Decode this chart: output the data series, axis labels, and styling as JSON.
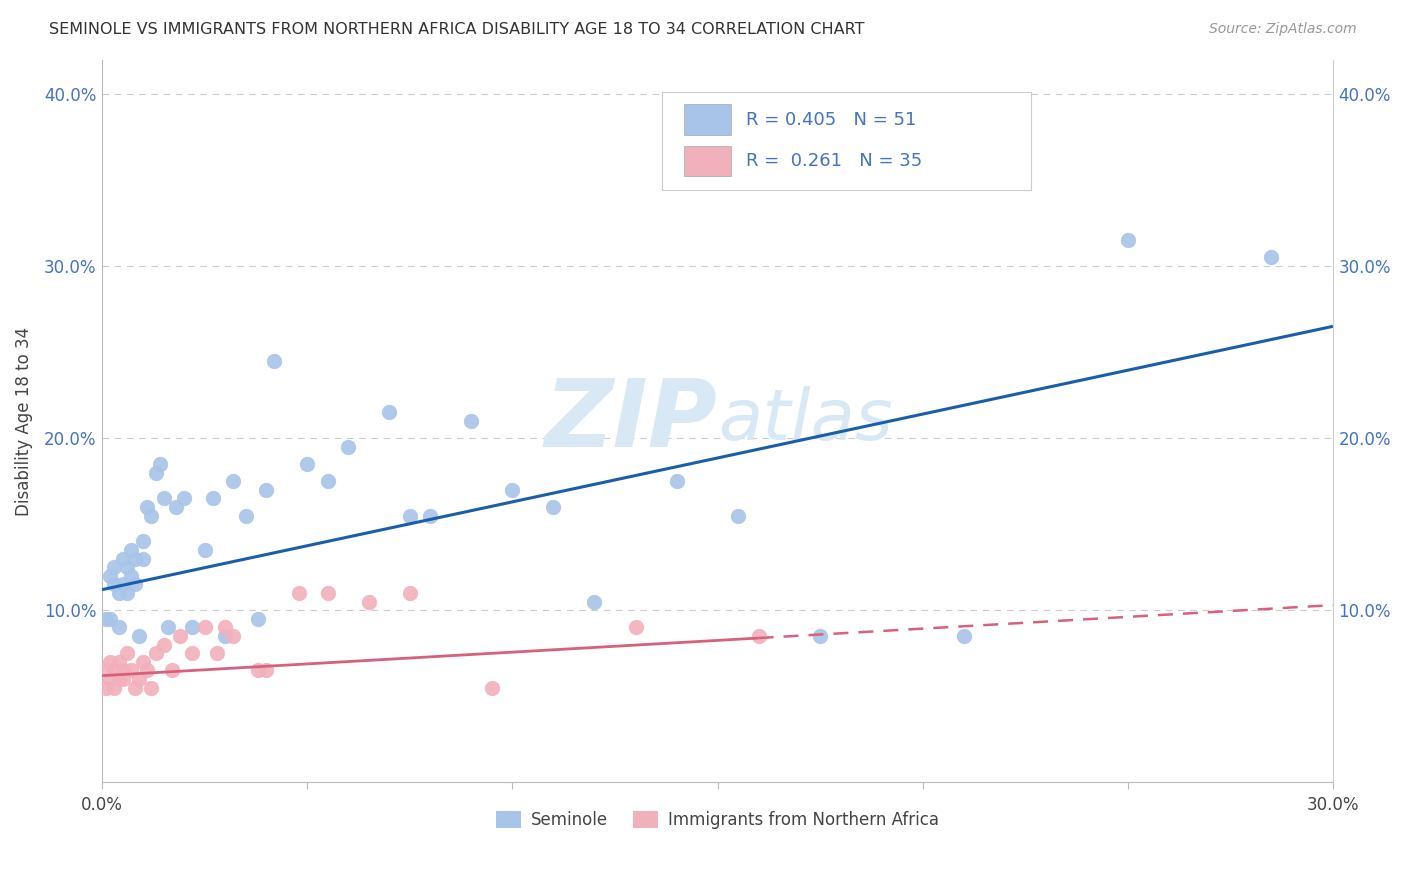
{
  "title": "SEMINOLE VS IMMIGRANTS FROM NORTHERN AFRICA DISABILITY AGE 18 TO 34 CORRELATION CHART",
  "source": "Source: ZipAtlas.com",
  "ylabel": "Disability Age 18 to 34",
  "xlim": [
    0.0,
    0.3
  ],
  "ylim": [
    0.0,
    0.42
  ],
  "x_ticks": [
    0.0,
    0.05,
    0.1,
    0.15,
    0.2,
    0.25,
    0.3
  ],
  "x_tick_labels": [
    "0.0%",
    "",
    "",
    "",
    "",
    "",
    "30.0%"
  ],
  "y_ticks": [
    0.0,
    0.1,
    0.2,
    0.3,
    0.4
  ],
  "y_tick_labels": [
    "",
    "10.0%",
    "20.0%",
    "30.0%",
    "40.0%"
  ],
  "legend_labels": [
    "Seminole",
    "Immigrants from Northern Africa"
  ],
  "R_seminole": 0.405,
  "N_seminole": 51,
  "R_immigrants": 0.261,
  "N_immigrants": 35,
  "seminole_color": "#a8c4e8",
  "immigrants_color": "#f2b0bc",
  "trend_seminole_color": "#1a5eaa",
  "trend_immigrants_color": "#d9607a",
  "watermark_color": "#d8e8f5",
  "seminole_x": [
    0.001,
    0.002,
    0.002,
    0.003,
    0.003,
    0.004,
    0.004,
    0.005,
    0.005,
    0.006,
    0.006,
    0.007,
    0.007,
    0.008,
    0.008,
    0.009,
    0.01,
    0.01,
    0.011,
    0.012,
    0.013,
    0.014,
    0.015,
    0.016,
    0.018,
    0.02,
    0.022,
    0.025,
    0.027,
    0.03,
    0.032,
    0.035,
    0.038,
    0.04,
    0.042,
    0.05,
    0.055,
    0.06,
    0.07,
    0.075,
    0.08,
    0.09,
    0.1,
    0.11,
    0.12,
    0.14,
    0.155,
    0.175,
    0.21,
    0.25,
    0.285
  ],
  "seminole_y": [
    0.095,
    0.12,
    0.095,
    0.125,
    0.115,
    0.11,
    0.09,
    0.115,
    0.13,
    0.11,
    0.125,
    0.12,
    0.135,
    0.13,
    0.115,
    0.085,
    0.14,
    0.13,
    0.16,
    0.155,
    0.18,
    0.185,
    0.165,
    0.09,
    0.16,
    0.165,
    0.09,
    0.135,
    0.165,
    0.085,
    0.175,
    0.155,
    0.095,
    0.17,
    0.245,
    0.185,
    0.175,
    0.195,
    0.215,
    0.155,
    0.155,
    0.21,
    0.17,
    0.16,
    0.105,
    0.175,
    0.155,
    0.085,
    0.085,
    0.315,
    0.305
  ],
  "immigrants_x": [
    0.001,
    0.001,
    0.002,
    0.002,
    0.003,
    0.003,
    0.004,
    0.004,
    0.005,
    0.005,
    0.006,
    0.007,
    0.008,
    0.009,
    0.01,
    0.011,
    0.012,
    0.013,
    0.015,
    0.017,
    0.019,
    0.022,
    0.025,
    0.028,
    0.03,
    0.032,
    0.038,
    0.04,
    0.048,
    0.055,
    0.065,
    0.075,
    0.095,
    0.13,
    0.16
  ],
  "immigrants_y": [
    0.065,
    0.055,
    0.07,
    0.06,
    0.065,
    0.055,
    0.07,
    0.06,
    0.065,
    0.06,
    0.075,
    0.065,
    0.055,
    0.06,
    0.07,
    0.065,
    0.055,
    0.075,
    0.08,
    0.065,
    0.085,
    0.075,
    0.09,
    0.075,
    0.09,
    0.085,
    0.065,
    0.065,
    0.11,
    0.11,
    0.105,
    0.11,
    0.055,
    0.09,
    0.085
  ],
  "trend_sem_x0": 0.0,
  "trend_sem_x1": 0.3,
  "trend_sem_y0": 0.112,
  "trend_sem_y1": 0.265,
  "trend_imm_x0": 0.0,
  "trend_imm_x1": 0.3,
  "trend_imm_y0": 0.062,
  "trend_imm_y1": 0.103,
  "trend_imm_dash_x0": 0.16,
  "trend_imm_dash_x1": 0.3
}
